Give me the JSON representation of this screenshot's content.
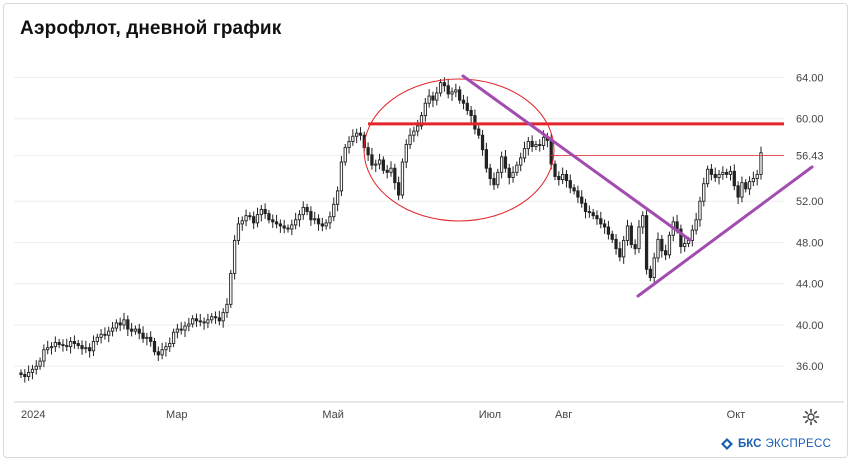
{
  "header": {
    "title": "Аэрофлот, дневной график"
  },
  "brand": {
    "name": "БКС",
    "suffix": "ЭКСПРЕСС"
  },
  "colors": {
    "candle": "#222222",
    "resistance": "#e3242b",
    "trend": "#a24cb0",
    "ellipse": "#e3242b",
    "grid": "#eeeeee",
    "axis_text": "#444444"
  },
  "chart_data": {
    "type": "candlestick",
    "title": "Аэрофлот, дневной график",
    "ylim": [
      33.5,
      65.5
    ],
    "yticks": [
      {
        "label": "64.00",
        "value": 64.0
      },
      {
        "label": "60.00",
        "value": 60.0
      },
      {
        "label": "56.43",
        "value": 56.43
      },
      {
        "label": "52.00",
        "value": 52.0
      },
      {
        "label": "48.00",
        "value": 48.0
      },
      {
        "label": "44.00",
        "value": 44.0
      },
      {
        "label": "40.00",
        "value": 40.0
      },
      {
        "label": "36.00",
        "value": 36.0
      }
    ],
    "xticks": [
      {
        "label": "2024",
        "index": 0
      },
      {
        "label": "Мар",
        "index": 38
      },
      {
        "label": "Май",
        "index": 79
      },
      {
        "label": "Июл",
        "index": 120
      },
      {
        "label": "Авг",
        "index": 140
      },
      {
        "label": "Окт",
        "index": 185
      }
    ],
    "closes": [
      35.2,
      35.0,
      35.4,
      35.7,
      36.0,
      36.5,
      37.6,
      37.8,
      37.9,
      38.3,
      38.1,
      38.0,
      37.9,
      38.4,
      38.2,
      38.0,
      37.7,
      37.8,
      37.5,
      38.4,
      38.8,
      39.1,
      39.0,
      39.4,
      39.7,
      40.2,
      40.0,
      40.5,
      39.6,
      39.4,
      39.6,
      39.2,
      38.7,
      38.8,
      38.4,
      37.4,
      37.1,
      37.6,
      37.9,
      38.2,
      39.3,
      39.6,
      39.5,
      39.9,
      40.1,
      40.6,
      40.4,
      40.3,
      40.2,
      40.5,
      40.8,
      40.7,
      40.4,
      41.2,
      42.0,
      45.0,
      48.2,
      49.8,
      50.1,
      50.6,
      50.5,
      49.9,
      50.7,
      51.2,
      50.8,
      50.2,
      50.0,
      49.8,
      49.6,
      49.4,
      49.3,
      49.7,
      50.2,
      50.7,
      51.4,
      51.0,
      50.2,
      50.3,
      49.8,
      49.6,
      49.9,
      50.5,
      51.7,
      53.0,
      55.8,
      57.2,
      57.8,
      58.3,
      58.6,
      58.4,
      57.2,
      56.5,
      55.5,
      55.6,
      56.0,
      55.0,
      54.8,
      55.2,
      53.8,
      52.6,
      55.8,
      57.5,
      58.4,
      58.8,
      59.3,
      60.3,
      61.5,
      62.2,
      61.8,
      62.5,
      63.5,
      63.2,
      62.4,
      62.6,
      62.8,
      61.8,
      61.5,
      60.8,
      60.3,
      59.0,
      58.4,
      57.0,
      55.2,
      54.2,
      53.6,
      54.8,
      56.3,
      55.2,
      54.3,
      54.8,
      55.5,
      56.2,
      57.1,
      57.8,
      57.3,
      57.5,
      57.4,
      58.2,
      57.9,
      55.6,
      54.4,
      54.1,
      54.6,
      54.0,
      53.3,
      53.0,
      52.4,
      51.8,
      51.0,
      50.9,
      50.6,
      50.3,
      49.8,
      49.5,
      48.8,
      48.3,
      47.4,
      46.6,
      48.2,
      49.6,
      47.8,
      47.4,
      49.5,
      50.6,
      45.4,
      44.6,
      46.5,
      48.3,
      47.2,
      46.8,
      48.7,
      50.0,
      49.3,
      47.6,
      47.9,
      48.2,
      49.2,
      50.2,
      52.0,
      53.7,
      55.1,
      54.6,
      54.3,
      54.6,
      54.8,
      54.6,
      54.9,
      53.5,
      52.4,
      53.8,
      53.2,
      53.9,
      54.2,
      54.6,
      56.7
    ]
  }
}
